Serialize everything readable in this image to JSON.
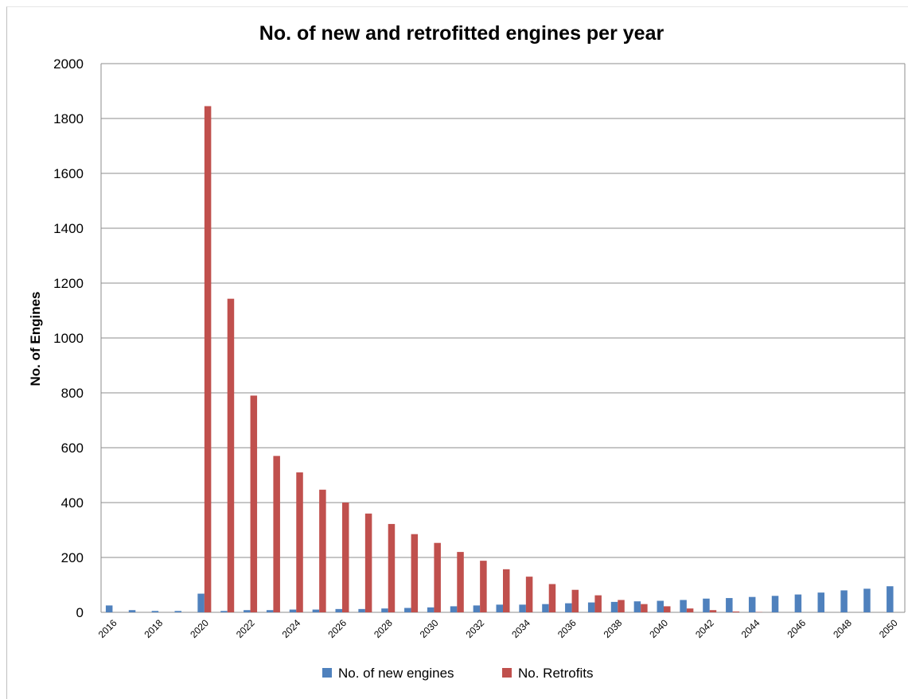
{
  "chart_data": {
    "type": "bar",
    "title": "No. of new and retrofitted engines per year",
    "xlabel": "",
    "ylabel": "No. of Engines",
    "ylim": [
      0,
      2000
    ],
    "yticks": [
      0,
      200,
      400,
      600,
      800,
      1000,
      1200,
      1400,
      1600,
      1800,
      2000
    ],
    "xtick_labels": [
      "2016",
      "2018",
      "2020",
      "2022",
      "2024",
      "2026",
      "2028",
      "2030",
      "2032",
      "2034",
      "2036",
      "2038",
      "2040",
      "2042",
      "2044",
      "2046",
      "2048",
      "2050"
    ],
    "categories": [
      2016,
      2017,
      2018,
      2019,
      2020,
      2021,
      2022,
      2023,
      2024,
      2025,
      2026,
      2027,
      2028,
      2029,
      2030,
      2031,
      2032,
      2033,
      2034,
      2035,
      2036,
      2037,
      2038,
      2039,
      2040,
      2041,
      2042,
      2043,
      2044,
      2045,
      2046,
      2047,
      2048,
      2049,
      2050
    ],
    "series": [
      {
        "name": "No. of new engines",
        "color": "#4f81bd",
        "values": [
          25,
          8,
          5,
          5,
          68,
          5,
          8,
          8,
          10,
          10,
          12,
          12,
          14,
          16,
          18,
          22,
          25,
          28,
          28,
          30,
          33,
          36,
          38,
          40,
          42,
          45,
          50,
          52,
          56,
          60,
          65,
          72,
          80,
          86,
          95
        ]
      },
      {
        "name": "No. Retrofits",
        "color": "#c0504d",
        "values": [
          0,
          0,
          0,
          0,
          1845,
          1143,
          790,
          570,
          510,
          447,
          400,
          360,
          322,
          285,
          253,
          220,
          188,
          157,
          130,
          103,
          82,
          62,
          45,
          30,
          22,
          14,
          8,
          3,
          1,
          0,
          0,
          0,
          0,
          0,
          0
        ]
      }
    ],
    "grid": true,
    "legend_position": "bottom"
  }
}
